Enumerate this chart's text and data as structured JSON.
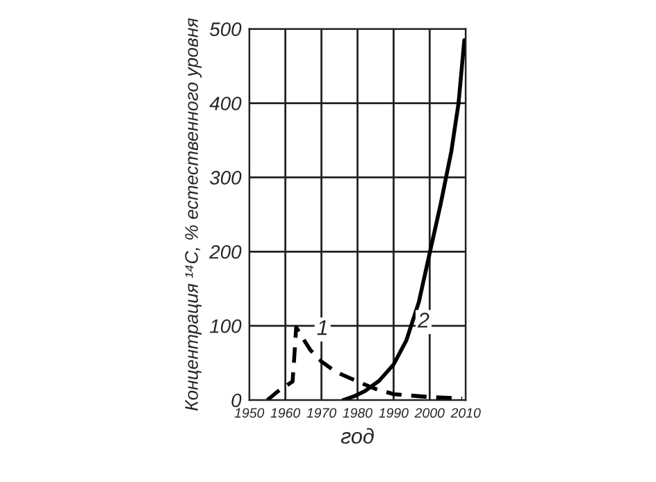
{
  "chart_data": {
    "type": "line",
    "xlabel": "год",
    "ylabel": "Концентрация ¹⁴C, % естественного уровня",
    "xlim": [
      1950,
      2010
    ],
    "xticks": [
      1950,
      1960,
      1970,
      1980,
      1990,
      2000,
      2010
    ],
    "ylim": [
      0,
      500
    ],
    "yticks": [
      0,
      100,
      200,
      300,
      400,
      500
    ],
    "grid": true,
    "series": [
      {
        "color": "#000000",
        "line_style": "dashed",
        "x": [
          1955,
          1958,
          1962,
          1962.5,
          1963,
          1965,
          1967,
          1970,
          1974,
          1981,
          1985,
          1990,
          1995,
          2000,
          2005,
          2009
        ],
        "values": [
          0,
          12,
          25,
          60,
          98,
          82,
          67,
          52,
          38,
          23,
          15,
          8,
          6,
          4,
          3,
          2
        ]
      },
      {
        "color": "#000000",
        "line_style": "solid",
        "x": [
          1976,
          1979,
          1982,
          1986,
          1990,
          1993.5,
          1997,
          2000,
          2003,
          2006,
          2008,
          2009.6
        ],
        "values": [
          0,
          5,
          12,
          26,
          48,
          80,
          132,
          198,
          263,
          335,
          400,
          485
        ]
      }
    ],
    "annotations": [
      {
        "text": "1",
        "x": 1966,
        "y": 74
      },
      {
        "text": "2",
        "x": 1994,
        "y": 84
      }
    ]
  }
}
